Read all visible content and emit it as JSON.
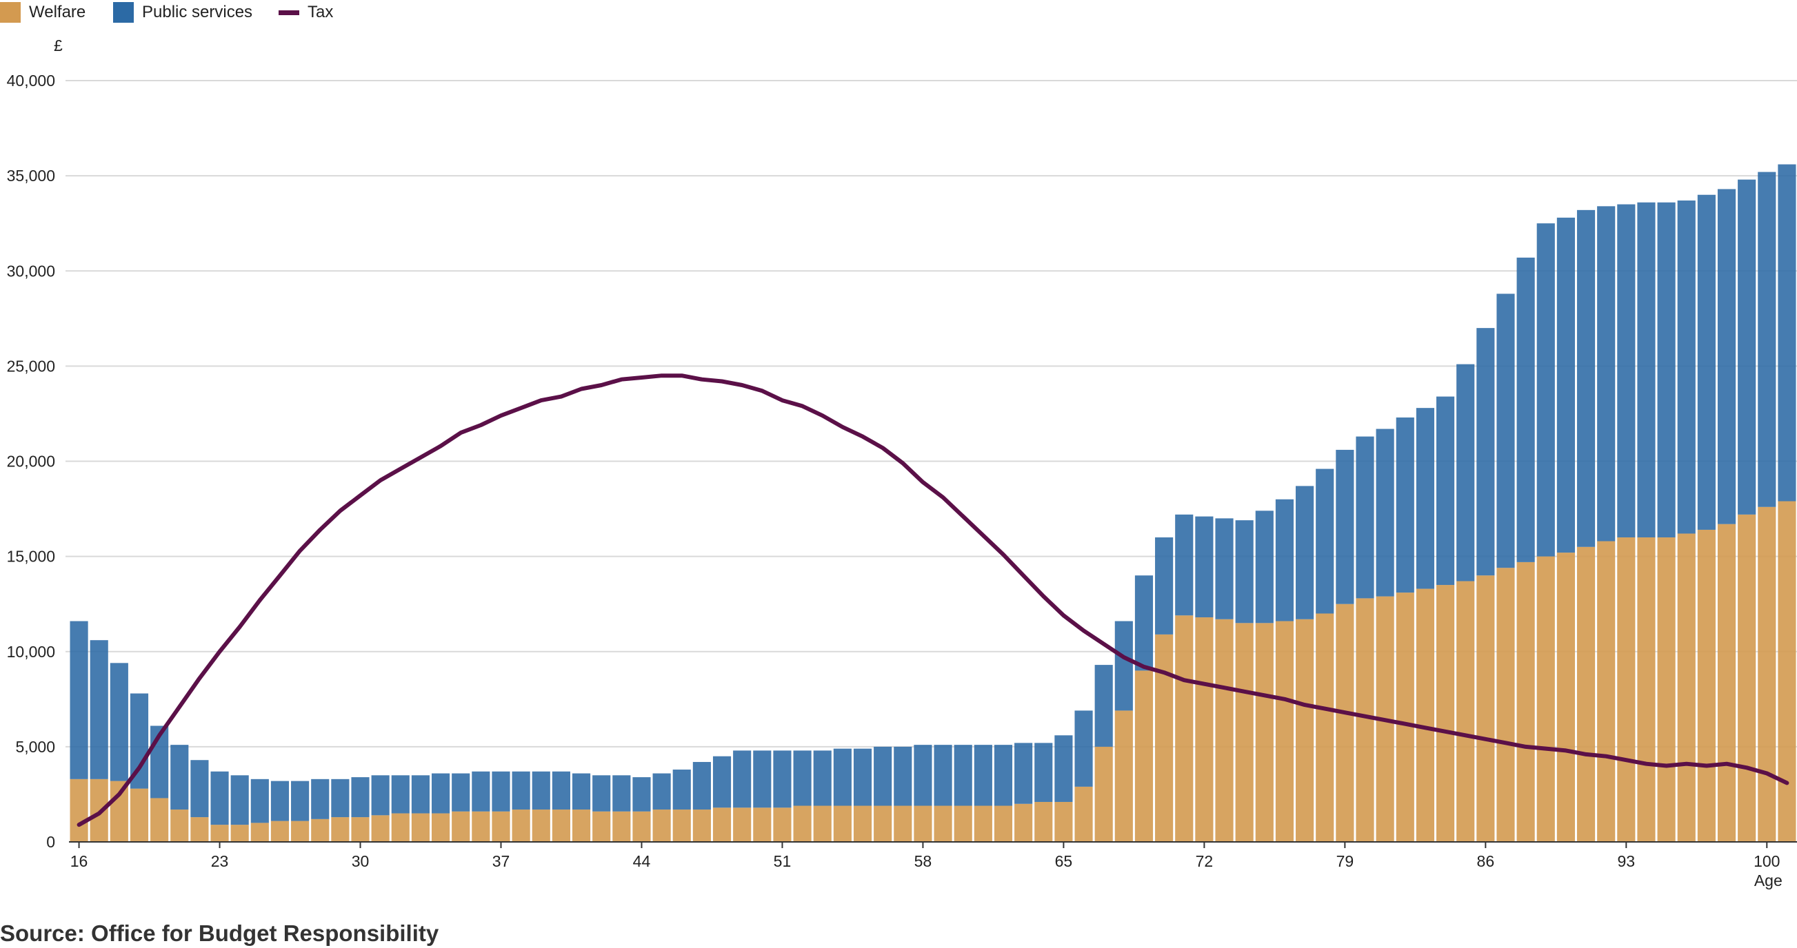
{
  "chart_data": {
    "type": "bar",
    "stacked": true,
    "legend": {
      "placement": "top-left",
      "items": [
        {
          "label": "Welfare",
          "color": "#D39A50",
          "kind": "box"
        },
        {
          "label": "Public services",
          "color": "#2C6AA5",
          "kind": "box"
        },
        {
          "label": "Tax",
          "color": "#5B1048",
          "kind": "line"
        }
      ]
    },
    "y_unit": "£",
    "xlabel": "Age",
    "ylim": [
      0,
      40000
    ],
    "yticks": [
      0,
      5000,
      10000,
      15000,
      20000,
      25000,
      30000,
      35000,
      40000
    ],
    "ytick_labels": [
      "0",
      "5,000",
      "10,000",
      "15,000",
      "20,000",
      "25,000",
      "30,000",
      "35,000",
      "40,000"
    ],
    "xtick_labels": [
      "16",
      "23",
      "30",
      "37",
      "44",
      "51",
      "58",
      "65",
      "72",
      "79",
      "86",
      "93",
      "100"
    ],
    "grid": "horizontal",
    "x": [
      16,
      17,
      18,
      19,
      20,
      21,
      22,
      23,
      24,
      25,
      26,
      27,
      28,
      29,
      30,
      31,
      32,
      33,
      34,
      35,
      36,
      37,
      38,
      39,
      40,
      41,
      42,
      43,
      44,
      45,
      46,
      47,
      48,
      49,
      50,
      51,
      52,
      53,
      54,
      55,
      56,
      57,
      58,
      59,
      60,
      61,
      62,
      63,
      64,
      65,
      66,
      67,
      68,
      69,
      70,
      71,
      72,
      73,
      74,
      75,
      76,
      77,
      78,
      79,
      80,
      81,
      82,
      83,
      84,
      85,
      86,
      87,
      88,
      89,
      90,
      91,
      92,
      93,
      94,
      95,
      96,
      97,
      98,
      99,
      100,
      101
    ],
    "series": [
      {
        "name": "Welfare",
        "type": "bar",
        "color": "#D39A50",
        "values": [
          3300,
          3300,
          3200,
          2800,
          2300,
          1700,
          1300,
          900,
          900,
          1000,
          1100,
          1100,
          1200,
          1300,
          1300,
          1400,
          1500,
          1500,
          1500,
          1600,
          1600,
          1600,
          1700,
          1700,
          1700,
          1700,
          1600,
          1600,
          1600,
          1700,
          1700,
          1700,
          1800,
          1800,
          1800,
          1800,
          1900,
          1900,
          1900,
          1900,
          1900,
          1900,
          1900,
          1900,
          1900,
          1900,
          1900,
          2000,
          2100,
          2100,
          2900,
          5000,
          6900,
          9000,
          10900,
          11900,
          11800,
          11700,
          11500,
          11500,
          11600,
          11700,
          12000,
          12500,
          12800,
          12900,
          13100,
          13300,
          13500,
          13700,
          14000,
          14400,
          14700,
          15000,
          15200,
          15500,
          15800,
          16000,
          16000,
          16000,
          16200,
          16400,
          16700,
          17200,
          17600,
          17900
        ]
      },
      {
        "name": "Public services",
        "type": "bar",
        "color": "#2C6AA5",
        "values": [
          8300,
          7300,
          6200,
          5000,
          3800,
          3400,
          3000,
          2800,
          2600,
          2300,
          2100,
          2100,
          2100,
          2000,
          2100,
          2100,
          2000,
          2000,
          2100,
          2000,
          2100,
          2100,
          2000,
          2000,
          2000,
          1900,
          1900,
          1900,
          1800,
          1900,
          2100,
          2500,
          2700,
          3000,
          3000,
          3000,
          2900,
          2900,
          3000,
          3000,
          3100,
          3100,
          3200,
          3200,
          3200,
          3200,
          3200,
          3200,
          3100,
          3500,
          4000,
          4300,
          4700,
          5000,
          5100,
          5300,
          5300,
          5300,
          5400,
          5900,
          6400,
          7000,
          7600,
          8100,
          8500,
          8800,
          9200,
          9500,
          9900,
          11400,
          13000,
          14400,
          16000,
          17500,
          17600,
          17700,
          17600,
          17500,
          17600,
          17600,
          17500,
          17600,
          17600,
          17600,
          17600,
          17700
        ]
      },
      {
        "name": "Tax",
        "type": "line",
        "color": "#5B1048",
        "values": [
          900,
          1500,
          2500,
          3900,
          5600,
          7100,
          8600,
          10000,
          11300,
          12700,
          14000,
          15300,
          16400,
          17400,
          18200,
          19000,
          19600,
          20200,
          20800,
          21500,
          21900,
          22400,
          22800,
          23200,
          23400,
          23800,
          24000,
          24300,
          24400,
          24500,
          24500,
          24300,
          24200,
          24000,
          23700,
          23200,
          22900,
          22400,
          21800,
          21300,
          20700,
          19900,
          18900,
          18100,
          17100,
          16100,
          15100,
          14000,
          12900,
          11900,
          11100,
          10400,
          9700,
          9200,
          8900,
          8500,
          8300,
          8100,
          7900,
          7700,
          7500,
          7200,
          7000,
          6800,
          6600,
          6400,
          6200,
          6000,
          5800,
          5600,
          5400,
          5200,
          5000,
          4900,
          4800,
          4600,
          4500,
          4300,
          4100,
          4000,
          4100,
          4000,
          4100,
          3900,
          3600,
          3100
        ]
      }
    ]
  },
  "source": "Source: Office for Budget Responsibility"
}
